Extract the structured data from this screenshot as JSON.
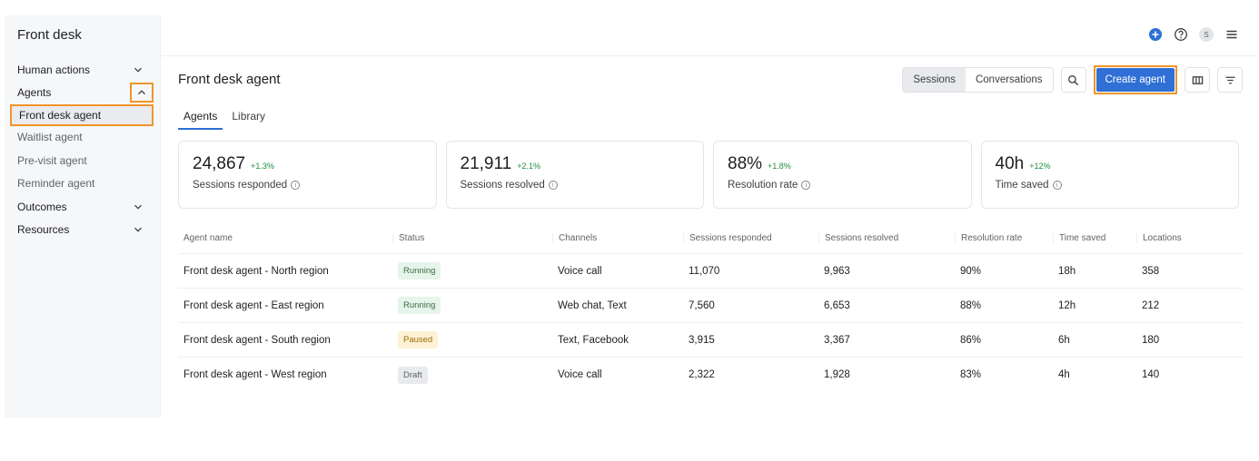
{
  "sidebar": {
    "title": "Front desk",
    "items": [
      {
        "label": "Human actions",
        "chevron": "down"
      },
      {
        "label": "Agents",
        "chevron": "up"
      },
      {
        "label": "Front desk agent"
      },
      {
        "label": "Waitlist agent"
      },
      {
        "label": "Pre-visit agent"
      },
      {
        "label": "Reminder agent"
      },
      {
        "label": "Outcomes",
        "chevron": "down"
      },
      {
        "label": "Resources",
        "chevron": "down"
      }
    ]
  },
  "topbar": {
    "avatar_initial": "S",
    "icons": [
      "add-circle-icon",
      "help-icon",
      "avatar",
      "menu-icon"
    ],
    "accent_color": "#2f6fd6"
  },
  "main": {
    "title": "Front desk agent",
    "view_toggle": {
      "sessions": "Sessions",
      "conversations": "Conversations",
      "selected": "Sessions"
    },
    "create_label": "Create agent",
    "tabs": [
      {
        "label": "Agents",
        "active": true
      },
      {
        "label": "Library",
        "active": false
      }
    ],
    "stats": [
      {
        "value": "24,867",
        "delta": "+1.3%",
        "label": "Sessions responded"
      },
      {
        "value": "21,911",
        "delta": "+2.1%",
        "label": "Sessions resolved"
      },
      {
        "value": "88%",
        "delta": "+1.8%",
        "label": "Resolution rate"
      },
      {
        "value": "40h",
        "delta": "+12%",
        "label": "Time saved"
      }
    ]
  },
  "table": {
    "headers": [
      "Agent name",
      "Status",
      "Channels",
      "Sessions responded",
      "Sessions resolved",
      "Resolution rate",
      "Time saved",
      "Locations"
    ],
    "rows": [
      {
        "name": "Front desk agent - North region",
        "status": "Running",
        "channels": "Voice call",
        "responded": "11,070",
        "resolved": "9,963",
        "rate": "90%",
        "time": "18h",
        "locations": "358"
      },
      {
        "name": "Front desk agent - East region",
        "status": "Running",
        "channels": "Web chat, Text",
        "responded": "7,560",
        "resolved": "6,653",
        "rate": "88%",
        "time": "12h",
        "locations": "212"
      },
      {
        "name": "Front desk agent - South region",
        "status": "Paused",
        "channels": "Text, Facebook",
        "responded": "3,915",
        "resolved": "3,367",
        "rate": "86%",
        "time": "6h",
        "locations": "180"
      },
      {
        "name": "Front desk agent - West region",
        "status": "Draft",
        "channels": "Voice call",
        "responded": "2,322",
        "resolved": "1,928",
        "rate": "83%",
        "time": "4h",
        "locations": "140"
      }
    ]
  }
}
